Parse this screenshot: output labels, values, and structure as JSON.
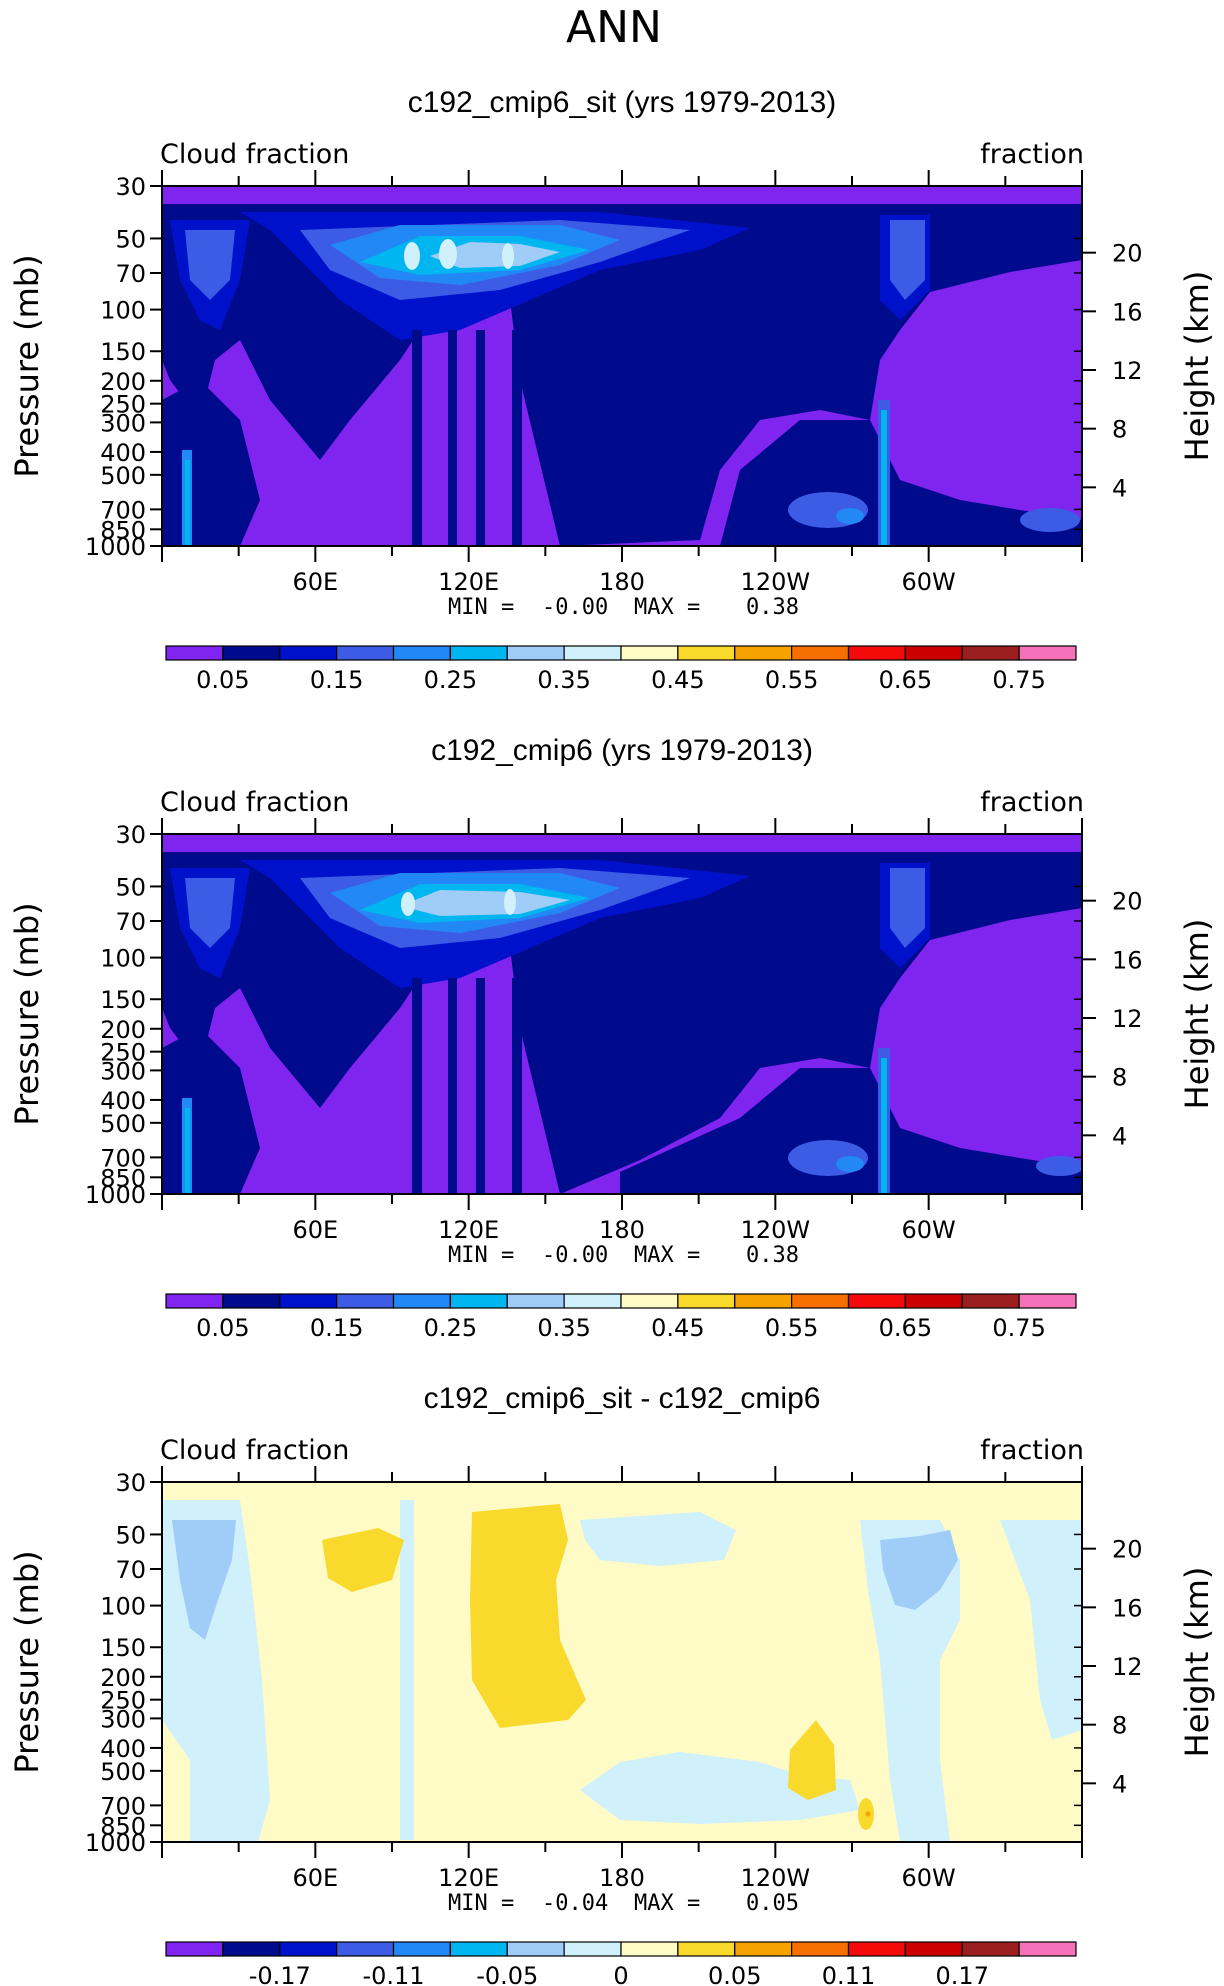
{
  "figure": {
    "title": "ANN"
  },
  "chart_data": [
    {
      "type": "heatmap",
      "title": "c192_cmip6_sit (yrs 1979-2013)",
      "left_label": "Cloud fraction",
      "right_label": "fraction",
      "ylabel": "Pressure (mb)",
      "ylabel_right": "Height (km)",
      "y_ticks": [
        "30",
        "50",
        "70",
        "100",
        "150",
        "200",
        "250",
        "300",
        "400",
        "500",
        "700",
        "850",
        "1000"
      ],
      "y_ticks_shown": [
        "30",
        "50",
        "70",
        "100",
        "150",
        "200",
        "250",
        "300",
        "400",
        "500",
        "700",
        "850",
        "1000"
      ],
      "right_ticks": [
        "20",
        "16",
        "12",
        "8",
        "4"
      ],
      "x_ticks": [
        "60E",
        "120E",
        "180",
        "120W",
        "60W"
      ],
      "min_label": "MIN =",
      "min_value": "-0.00",
      "max_label": "MAX =",
      "max_value": "0.38",
      "colorbar_labels": [
        "0.05",
        "0.15",
        "0.25",
        "0.35",
        "0.45",
        "0.55",
        "0.65",
        "0.75"
      ],
      "colorbar_colors": [
        "#8024f0",
        "#000a8c",
        "#0011cc",
        "#3c5ce6",
        "#2288f5",
        "#00b6f0",
        "#a0ccf8",
        "#d0f0fb",
        "#fffbc6",
        "#f8d92c",
        "#f6a200",
        "#f66f00",
        "#f50a0a",
        "#cc0000",
        "#9b1f1f",
        "#f672b8"
      ]
    },
    {
      "type": "heatmap",
      "title": "c192_cmip6 (yrs 1979-2013)",
      "left_label": "Cloud fraction",
      "right_label": "fraction",
      "ylabel": "Pressure (mb)",
      "ylabel_right": "Height (km)",
      "y_ticks": [
        "30",
        "50",
        "70",
        "100",
        "150",
        "200",
        "250",
        "300",
        "400",
        "500",
        "700",
        "850",
        "1000"
      ],
      "y_ticks_shown": [
        "30",
        "50",
        "70",
        "100",
        "150",
        "200",
        "250",
        "300",
        "400",
        "500",
        "700",
        "850",
        "1000"
      ],
      "right_ticks": [
        "20",
        "16",
        "12",
        "8",
        "4"
      ],
      "x_ticks": [
        "60E",
        "120E",
        "180",
        "120W",
        "60W"
      ],
      "min_label": "MIN =",
      "min_value": "-0.00",
      "max_label": "MAX =",
      "max_value": "0.38",
      "colorbar_labels": [
        "0.05",
        "0.15",
        "0.25",
        "0.35",
        "0.45",
        "0.55",
        "0.65",
        "0.75"
      ],
      "colorbar_colors": [
        "#8024f0",
        "#000a8c",
        "#0011cc",
        "#3c5ce6",
        "#2288f5",
        "#00b6f0",
        "#a0ccf8",
        "#d0f0fb",
        "#fffbc6",
        "#f8d92c",
        "#f6a200",
        "#f66f00",
        "#f50a0a",
        "#cc0000",
        "#9b1f1f",
        "#f672b8"
      ]
    },
    {
      "type": "heatmap",
      "title": "c192_cmip6_sit - c192_cmip6",
      "left_label": "Cloud fraction",
      "right_label": "fraction",
      "ylabel": "Pressure (mb)",
      "ylabel_right": "Height (km)",
      "y_ticks": [
        "30",
        "50",
        "70",
        "100",
        "150",
        "200",
        "250",
        "300",
        "400",
        "500",
        "700",
        "850",
        "1000"
      ],
      "y_ticks_shown": [
        "30",
        "50",
        "70",
        "100",
        "150",
        "200",
        "250",
        "300",
        "400",
        "500",
        "700",
        "850",
        "1000"
      ],
      "right_ticks": [
        "20",
        "16",
        "12",
        "8",
        "4"
      ],
      "x_ticks": [
        "60E",
        "120E",
        "180",
        "120W",
        "60W"
      ],
      "min_label": "MIN =",
      "min_value": "-0.04",
      "max_label": "MAX =",
      "max_value": "0.05",
      "colorbar_labels": [
        "-0.17",
        "-0.11",
        "-0.05",
        "0",
        "0.05",
        "0.11",
        "0.17"
      ],
      "colorbar_colors": [
        "#8024f0",
        "#000a8c",
        "#0011cc",
        "#3c5ce6",
        "#2288f5",
        "#00b6f0",
        "#a0ccf8",
        "#d0f0fb",
        "#fffbc6",
        "#f8d92c",
        "#f6a200",
        "#f66f00",
        "#f50a0a",
        "#cc0000",
        "#9b1f1f",
        "#f672b8"
      ]
    }
  ]
}
